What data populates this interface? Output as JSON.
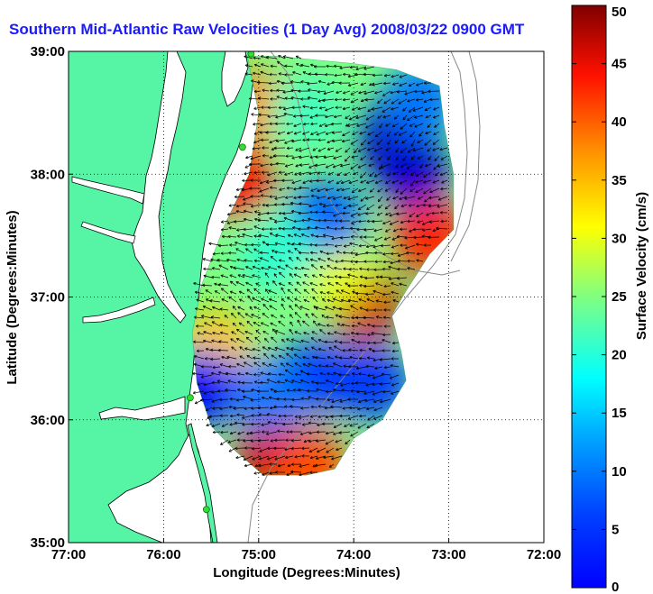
{
  "chart_data": {
    "type": "heatmap",
    "title": "Southern Mid-Atlantic Raw Velocities (1 Day Avg) 2008/03/22 0900 GMT",
    "xlabel": "Longitude (Degrees:Minutes)",
    "ylabel": "Latitude (Degrees:Minutes)",
    "xlim": [
      -77,
      -72
    ],
    "ylim": [
      35,
      39
    ],
    "x_ticks": [
      {
        "value": -77,
        "label": "77:00"
      },
      {
        "value": -76,
        "label": "76:00"
      },
      {
        "value": -75,
        "label": "75:00"
      },
      {
        "value": -74,
        "label": "74:00"
      },
      {
        "value": -73,
        "label": "73:00"
      },
      {
        "value": -72,
        "label": "72:00"
      }
    ],
    "y_ticks": [
      {
        "value": 35,
        "label": "35:00"
      },
      {
        "value": 36,
        "label": "36:00"
      },
      {
        "value": 37,
        "label": "37:00"
      },
      {
        "value": 38,
        "label": "38:00"
      },
      {
        "value": 39,
        "label": "39:00"
      }
    ],
    "grid": true,
    "colorbar": {
      "label": "Surface Velocity (cm/s)",
      "range": [
        0,
        50
      ],
      "ticks": [
        0,
        5,
        10,
        15,
        20,
        25,
        30,
        35,
        40,
        45,
        50
      ],
      "colormap": "jet"
    },
    "colors": {
      "land": "#55f5a5",
      "water": "#ffffff",
      "coastline": "#000000",
      "bathymetry": "#888888",
      "arrows": "#000000",
      "stations": "#33dd33"
    },
    "coverage_boundary": [
      [
        -75.12,
        38.96
      ],
      [
        -74.8,
        38.96
      ],
      [
        -74.4,
        38.93
      ],
      [
        -74.0,
        38.9
      ],
      [
        -73.55,
        38.85
      ],
      [
        -73.1,
        38.72
      ],
      [
        -73.05,
        38.4
      ],
      [
        -72.95,
        38.0
      ],
      [
        -72.95,
        37.55
      ],
      [
        -73.2,
        37.35
      ],
      [
        -73.45,
        37.05
      ],
      [
        -73.6,
        36.85
      ],
      [
        -73.5,
        36.55
      ],
      [
        -73.45,
        36.32
      ],
      [
        -73.7,
        36.0
      ],
      [
        -74.0,
        35.85
      ],
      [
        -74.2,
        35.6
      ],
      [
        -74.5,
        35.55
      ],
      [
        -74.95,
        35.55
      ],
      [
        -75.25,
        35.75
      ],
      [
        -75.5,
        35.95
      ],
      [
        -75.65,
        36.3
      ],
      [
        -75.7,
        36.7
      ],
      [
        -75.6,
        37.1
      ],
      [
        -75.35,
        37.6
      ],
      [
        -75.1,
        38.0
      ],
      [
        -75.0,
        38.5
      ]
    ],
    "velocity_spots": [
      {
        "lon": -73.9,
        "lat": 36.95,
        "speed": 46
      },
      {
        "lon": -73.2,
        "lat": 37.5,
        "speed": 42
      },
      {
        "lon": -75.25,
        "lat": 37.95,
        "speed": 43
      },
      {
        "lon": -74.85,
        "lat": 35.7,
        "speed": 46
      },
      {
        "lon": -74.45,
        "lat": 35.62,
        "speed": 40
      },
      {
        "lon": -75.45,
        "lat": 36.6,
        "speed": 34
      },
      {
        "lon": -75.05,
        "lat": 38.55,
        "speed": 37
      },
      {
        "lon": -74.2,
        "lat": 37.2,
        "speed": 30
      },
      {
        "lon": -73.6,
        "lat": 38.3,
        "speed": 3
      },
      {
        "lon": -73.4,
        "lat": 38.05,
        "speed": 4
      },
      {
        "lon": -75.6,
        "lat": 36.25,
        "speed": 6
      },
      {
        "lon": -74.4,
        "lat": 36.35,
        "speed": 9
      },
      {
        "lon": -73.8,
        "lat": 36.3,
        "speed": 9
      },
      {
        "lon": -74.3,
        "lat": 37.65,
        "speed": 11
      },
      {
        "lon": -74.9,
        "lat": 36.2,
        "speed": 12
      },
      {
        "lon": -73.3,
        "lat": 38.6,
        "speed": 12
      },
      {
        "lon": -74.5,
        "lat": 38.5,
        "speed": 22
      },
      {
        "lon": -74.8,
        "lat": 37.35,
        "speed": 21
      }
    ],
    "stations": [
      {
        "lon": -75.08,
        "lat": 38.98
      },
      {
        "lon": -75.17,
        "lat": 38.22
      },
      {
        "lon": -75.72,
        "lat": 36.18
      },
      {
        "lon": -75.55,
        "lat": 35.27
      }
    ]
  }
}
